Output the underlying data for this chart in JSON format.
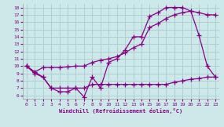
{
  "xlabel": "Windchill (Refroidissement éolien,°C)",
  "bg_color": "#cce8e8",
  "line_color": "#880088",
  "grid_color": "#aacccc",
  "xlim": [
    -0.5,
    23.5
  ],
  "ylim": [
    5.5,
    18.5
  ],
  "xticks": [
    0,
    1,
    2,
    3,
    4,
    5,
    6,
    7,
    8,
    9,
    10,
    11,
    12,
    13,
    14,
    15,
    16,
    17,
    18,
    19,
    20,
    21,
    22,
    23
  ],
  "yticks": [
    6,
    7,
    8,
    9,
    10,
    11,
    12,
    13,
    14,
    15,
    16,
    17,
    18
  ],
  "series1_x": [
    0,
    1,
    2,
    3,
    4,
    5,
    6,
    7,
    8,
    9,
    10,
    11,
    12,
    13,
    14,
    15,
    16,
    17,
    18,
    19,
    20,
    21,
    22,
    23
  ],
  "series1_y": [
    10,
    9,
    8.5,
    7,
    6.5,
    6.5,
    7,
    5.8,
    8.5,
    7,
    10.5,
    11,
    12.2,
    14,
    14,
    16.8,
    17.3,
    18,
    18,
    18,
    17.5,
    14.2,
    10,
    8.5
  ],
  "series2_x": [
    0,
    1,
    2,
    3,
    4,
    5,
    6,
    7,
    8,
    9,
    10,
    11,
    12,
    13,
    14,
    15,
    16,
    17,
    18,
    19,
    20,
    21,
    22,
    23
  ],
  "series2_y": [
    10,
    9.2,
    9.8,
    9.8,
    9.8,
    9.9,
    10,
    10,
    10.5,
    10.8,
    11,
    11.3,
    11.8,
    12.5,
    13,
    15.3,
    15.8,
    16.5,
    17,
    17.3,
    17.5,
    17.3,
    17,
    17
  ],
  "series3_x": [
    0,
    1,
    2,
    3,
    4,
    5,
    6,
    7,
    8,
    9,
    10,
    11,
    12,
    13,
    14,
    15,
    16,
    17,
    18,
    19,
    20,
    21,
    22,
    23
  ],
  "series3_y": [
    10,
    9.2,
    8.5,
    7,
    7,
    7,
    7,
    7,
    7.5,
    7.5,
    7.5,
    7.5,
    7.5,
    7.5,
    7.5,
    7.5,
    7.5,
    7.5,
    7.8,
    8,
    8.2,
    8.3,
    8.5,
    8.5
  ]
}
